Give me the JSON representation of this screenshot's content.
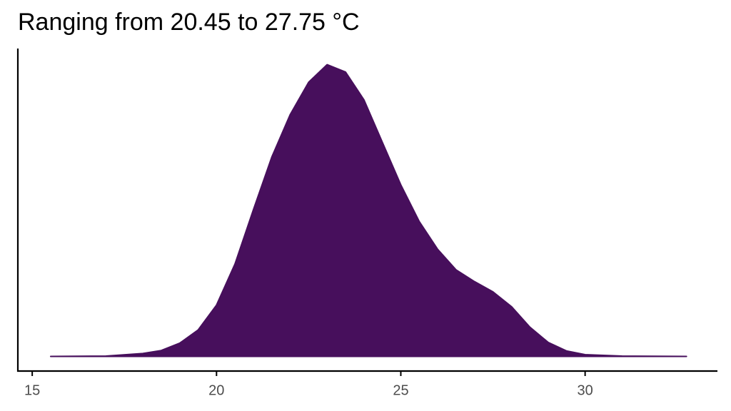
{
  "chart_data": {
    "type": "area",
    "title": "Ranging from 20.45 to 27.75 °C",
    "x": [
      15.5,
      17,
      18,
      18.5,
      19,
      19.5,
      20,
      20.5,
      21,
      21.5,
      22,
      22.5,
      23,
      23.5,
      24,
      24.5,
      25,
      25.5,
      26,
      26.5,
      27,
      27.5,
      28,
      28.5,
      29,
      29.5,
      30,
      31,
      32.75
    ],
    "values": [
      0,
      0.0002,
      0.002,
      0.004,
      0.009,
      0.018,
      0.035,
      0.063,
      0.1,
      0.136,
      0.165,
      0.187,
      0.199,
      0.194,
      0.175,
      0.146,
      0.117,
      0.092,
      0.073,
      0.059,
      0.051,
      0.044,
      0.034,
      0.02,
      0.0095,
      0.0037,
      0.0012,
      0.0002,
      0
    ],
    "color": "#470f5c",
    "xlim": [
      14.61,
      33.59
    ],
    "xticks": [
      15,
      20,
      25,
      30
    ],
    "ylim": [
      -0.01,
      0.21
    ]
  }
}
